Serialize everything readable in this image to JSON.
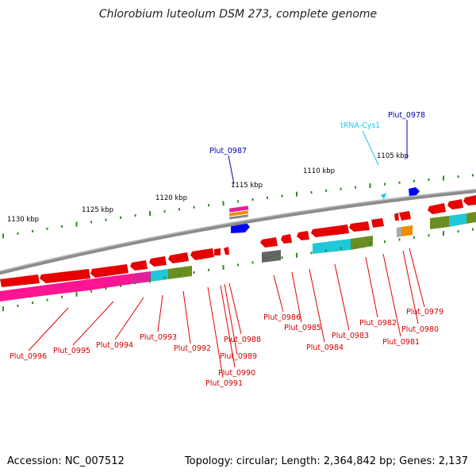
{
  "header": {
    "title": "Chlorobium luteolum DSM 273, complete genome"
  },
  "footer": {
    "accession": "Accession: NC_007512",
    "stats": "Topology: circular; Length: 2,364,842 bp; Genes: 2,137"
  },
  "colors": {
    "backbone": "#8c8c8c",
    "tick": "#2e8b22",
    "cds": "#e60000",
    "trna": "#1ec8f0",
    "blue_label": "#0000b4",
    "red_label": "#d20000",
    "pink": "#ff1493",
    "magenta": "#e0209a",
    "cyan": "#1ec8d8",
    "olive": "#6b8e23",
    "gray_box": "#646464",
    "orange": "#f08c00",
    "blue_gene": "#0000ff"
  },
  "kbp_labels": [
    "1130 kbp",
    "1125 kbp",
    "1120 kbp",
    "1115 kbp",
    "1110 kbp",
    "1105 kbp"
  ],
  "top_labels": [
    {
      "text": "Plut_0987",
      "color": "blue"
    },
    {
      "text": "tRNA-Cys1",
      "color": "cyan"
    },
    {
      "text": "Plut_0978",
      "color": "blue"
    }
  ],
  "gene_labels": [
    "Plut_0996",
    "Plut_0995",
    "Plut_0994",
    "Plut_0993",
    "Plut_0992",
    "Plut_0991",
    "Plut_0990",
    "Plut_0989",
    "Plut_0988",
    "Plut_0986",
    "Plut_0985",
    "Plut_0984",
    "Plut_0983",
    "Plut_0982",
    "Plut_0981",
    "Plut_0980",
    "Plut_0979"
  ]
}
